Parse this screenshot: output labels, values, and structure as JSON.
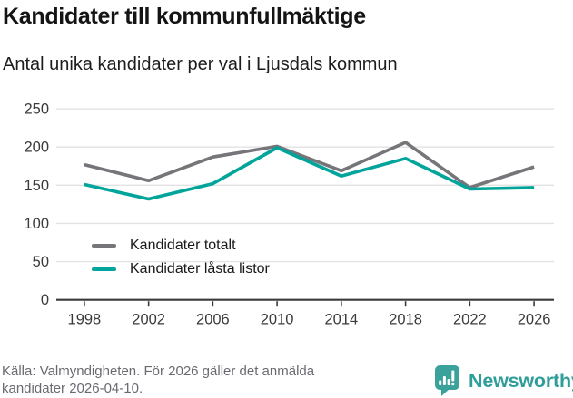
{
  "header": {
    "title": "Kandidater till kommunfullmäktige",
    "subtitle": "Antal unika kandidater per val i Ljusdals kommun"
  },
  "chart_data": {
    "type": "line",
    "title": "Kandidater till kommunfullmäktige",
    "subtitle": "Antal unika kandidater per val i Ljusdals kommun",
    "categories": [
      "1998",
      "2002",
      "2006",
      "2010",
      "2014",
      "2018",
      "2022",
      "2026"
    ],
    "series": [
      {
        "name": "Kandidater totalt",
        "color": "#75757a",
        "values": [
          177,
          156,
          187,
          201,
          169,
          206,
          147,
          174
        ]
      },
      {
        "name": "Kandidater låsta listor",
        "color": "#00a49a",
        "values": [
          151,
          132,
          152,
          199,
          162,
          185,
          145,
          147
        ]
      }
    ],
    "xlabel": "",
    "ylabel": "",
    "ylim": [
      0,
      250
    ],
    "yticks": [
      0,
      50,
      100,
      150,
      200,
      250
    ],
    "grid": "horizontal",
    "gridline_color": "#e2e2e2",
    "axis_color": "#3a3a3a",
    "legend_position": "inside-bottom-left"
  },
  "footer": {
    "source_lines": [
      "Källa: Valmyndigheten. För 2026 gäller det anmälda",
      "kandidater 2026-04-10."
    ],
    "brand": "Newsworthy",
    "brand_color": "#2f9e9a",
    "brand_icon": "speech-bubble-bar-chart"
  }
}
